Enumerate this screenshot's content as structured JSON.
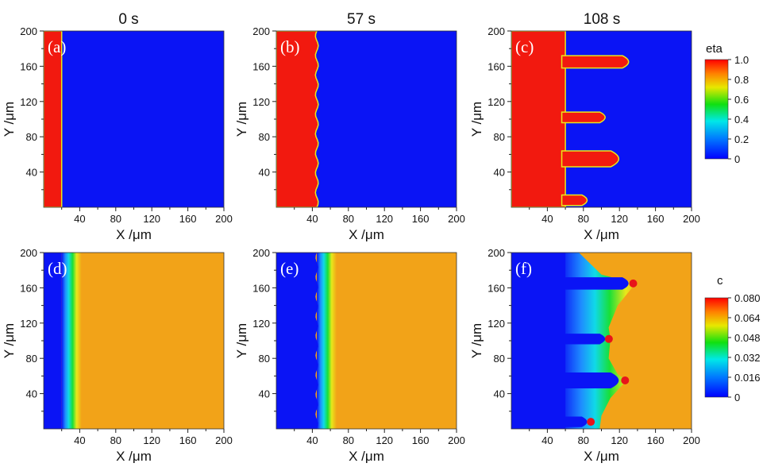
{
  "chart_data": {
    "type": "heatmap",
    "column_titles": [
      "0 s",
      "57 s",
      "108 s"
    ],
    "panels": [
      {
        "label": "(a)",
        "field": "eta",
        "time": "0 s",
        "interface_x": 20,
        "fingers": [],
        "bumps": 0
      },
      {
        "label": "(b)",
        "field": "eta",
        "time": "57 s",
        "interface_x": 45,
        "fingers": [],
        "bumps": 9
      },
      {
        "label": "(c)",
        "field": "eta",
        "time": "108 s",
        "interface_x": 60,
        "fingers": [
          {
            "y": 165,
            "tip_x": 137,
            "half_width": 7
          },
          {
            "y": 102,
            "tip_x": 110,
            "half_width": 6
          },
          {
            "y": 55,
            "tip_x": 128,
            "half_width": 9
          },
          {
            "y": 8,
            "tip_x": 90,
            "half_width": 6
          }
        ],
        "bumps": 0
      },
      {
        "label": "(d)",
        "field": "c",
        "time": "0 s",
        "interface_x": 20,
        "fingers": [],
        "bumps": 0
      },
      {
        "label": "(e)",
        "field": "c",
        "time": "57 s",
        "interface_x": 45,
        "fingers": [],
        "bumps": 9
      },
      {
        "label": "(f)",
        "field": "c",
        "time": "108 s",
        "interface_x": 60,
        "fingers": [
          {
            "y": 165,
            "tip_x": 137,
            "half_width": 7
          },
          {
            "y": 102,
            "tip_x": 110,
            "half_width": 6
          },
          {
            "y": 55,
            "tip_x": 128,
            "half_width": 9
          },
          {
            "y": 8,
            "tip_x": 90,
            "half_width": 6
          }
        ],
        "bumps": 0
      }
    ],
    "x_axis": {
      "label": "X /μm",
      "range": [
        0,
        200
      ],
      "ticks": [
        "40",
        "80",
        "120",
        "160",
        "200"
      ]
    },
    "y_axis": {
      "label": "Y /μm",
      "range": [
        0,
        200
      ],
      "ticks": [
        "40",
        "80",
        "120",
        "160",
        "200"
      ]
    },
    "colorbars": [
      {
        "title": "eta",
        "range": [
          0,
          1.0
        ],
        "ticks": [
          "1.0",
          "0.8",
          "0.6",
          "0.4",
          "0.2",
          "0"
        ]
      },
      {
        "title": "c",
        "range": [
          0,
          0.08
        ],
        "ticks": [
          "0.080",
          "0.064",
          "0.048",
          "0.032",
          "0.016",
          "0"
        ]
      }
    ],
    "colors": {
      "eta_high": "#f2190f",
      "eta_low": "#0a14f5",
      "c_bulk": "#f2a318",
      "c_low": "#0a14f5"
    }
  }
}
